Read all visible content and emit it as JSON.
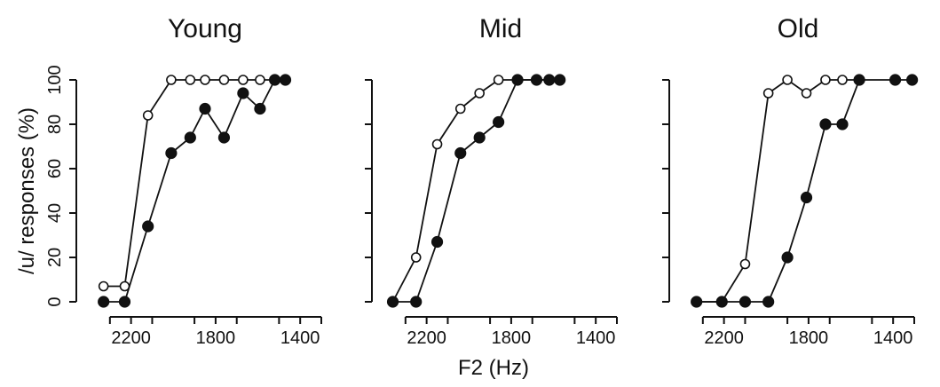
{
  "chart_data": {
    "type": "line",
    "xlabel": "F2 (Hz)",
    "ylabel": "/u/ responses (%)",
    "xlim": [
      2400,
      1300
    ],
    "ylim": [
      0,
      100
    ],
    "x_ticks": [
      2200,
      1800,
      1400
    ],
    "y_ticks": [
      0,
      20,
      40,
      60,
      80,
      100
    ],
    "panels": [
      {
        "title": "Young",
        "series": [
          {
            "marker": "open",
            "x": [
              2330,
              2230,
              2120,
              2010,
              1920,
              1850,
              1760,
              1670,
              1590,
              1520,
              1470
            ],
            "y": [
              7,
              7,
              84,
              100,
              100,
              100,
              100,
              100,
              100,
              100,
              100
            ]
          },
          {
            "marker": "filled",
            "x": [
              2330,
              2230,
              2120,
              2010,
              1920,
              1850,
              1760,
              1670,
              1590,
              1520,
              1470
            ],
            "y": [
              0,
              0,
              34,
              67,
              74,
              87,
              74,
              94,
              87,
              100,
              100
            ]
          }
        ]
      },
      {
        "title": "Mid",
        "series": [
          {
            "marker": "open",
            "x": [
              2360,
              2250,
              2150,
              2040,
              1950,
              1860,
              1770,
              1680,
              1620,
              1570
            ],
            "y": [
              0,
              20,
              71,
              87,
              94,
              100,
              100,
              100,
              100,
              100
            ]
          },
          {
            "marker": "filled",
            "x": [
              2360,
              2250,
              2150,
              2040,
              1950,
              1860,
              1770,
              1680,
              1620,
              1570
            ],
            "y": [
              0,
              0,
              27,
              67,
              74,
              81,
              100,
              100,
              100,
              100
            ]
          }
        ]
      },
      {
        "title": "Old",
        "series": [
          {
            "marker": "open",
            "x": [
              2330,
              2210,
              2100,
              1990,
              1900,
              1810,
              1720,
              1640,
              1560
            ],
            "y": [
              0,
              0,
              17,
              94,
              100,
              94,
              100,
              100,
              100
            ]
          },
          {
            "marker": "filled",
            "x": [
              2330,
              2210,
              2100,
              1990,
              1900,
              1810,
              1720,
              1640,
              1560,
              1390,
              1310
            ],
            "y": [
              0,
              0,
              0,
              0,
              20,
              47,
              80,
              80,
              100,
              100,
              100
            ]
          }
        ]
      }
    ]
  }
}
